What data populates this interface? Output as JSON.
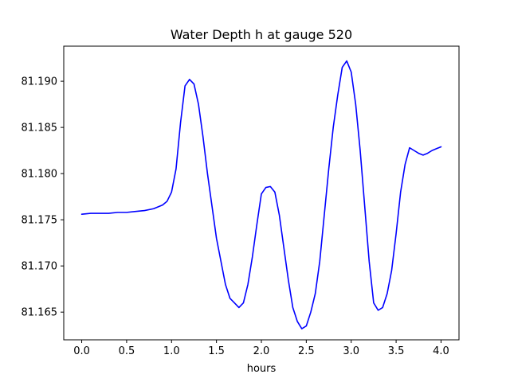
{
  "chart_data": {
    "type": "line",
    "title": "Water Depth h at gauge 520",
    "xlabel": "hours",
    "ylabel": "",
    "xlim": [
      -0.2,
      4.2
    ],
    "ylim": [
      81.162,
      81.1938
    ],
    "grid": false,
    "legend": "none",
    "x_ticks": [
      0.0,
      0.5,
      1.0,
      1.5,
      2.0,
      2.5,
      3.0,
      3.5,
      4.0
    ],
    "x_tick_labels": [
      "0.0",
      "0.5",
      "1.0",
      "1.5",
      "2.0",
      "2.5",
      "3.0",
      "3.5",
      "4.0"
    ],
    "y_ticks": [
      81.165,
      81.17,
      81.175,
      81.18,
      81.185,
      81.19
    ],
    "y_tick_labels": [
      "81.165",
      "81.170",
      "81.175",
      "81.180",
      "81.185",
      "81.190"
    ],
    "series": [
      {
        "color": "#0000ff",
        "x": [
          0.0,
          0.1,
          0.2,
          0.3,
          0.4,
          0.5,
          0.6,
          0.7,
          0.8,
          0.9,
          0.95,
          1.0,
          1.05,
          1.1,
          1.15,
          1.2,
          1.25,
          1.3,
          1.35,
          1.4,
          1.45,
          1.5,
          1.55,
          1.6,
          1.65,
          1.7,
          1.75,
          1.8,
          1.85,
          1.9,
          1.95,
          2.0,
          2.05,
          2.1,
          2.15,
          2.2,
          2.25,
          2.3,
          2.35,
          2.4,
          2.45,
          2.5,
          2.55,
          2.6,
          2.65,
          2.7,
          2.75,
          2.8,
          2.85,
          2.9,
          2.95,
          3.0,
          3.05,
          3.1,
          3.15,
          3.2,
          3.25,
          3.3,
          3.35,
          3.4,
          3.45,
          3.5,
          3.55,
          3.6,
          3.65,
          3.7,
          3.75,
          3.8,
          3.85,
          3.9,
          3.95,
          4.0
        ],
        "y": [
          81.1756,
          81.1757,
          81.1757,
          81.1757,
          81.1758,
          81.1758,
          81.1759,
          81.176,
          81.1762,
          81.1766,
          81.177,
          81.178,
          81.1805,
          81.1855,
          81.1895,
          81.1902,
          81.1897,
          81.1875,
          81.184,
          81.18,
          81.1765,
          81.173,
          81.1705,
          81.168,
          81.1665,
          81.166,
          81.1655,
          81.166,
          81.168,
          81.171,
          81.1745,
          81.1778,
          81.1785,
          81.1786,
          81.178,
          81.1755,
          81.172,
          81.1685,
          81.1655,
          81.164,
          81.1632,
          81.1635,
          81.165,
          81.167,
          81.1705,
          81.1755,
          81.1805,
          81.185,
          81.1885,
          81.1915,
          81.1922,
          81.191,
          81.1875,
          81.1825,
          81.1765,
          81.1705,
          81.166,
          81.1652,
          81.1655,
          81.167,
          81.1695,
          81.1735,
          81.178,
          81.181,
          81.1828,
          81.1825,
          81.1822,
          81.182,
          81.1822,
          81.1825,
          81.1827,
          81.1829
        ]
      }
    ]
  }
}
